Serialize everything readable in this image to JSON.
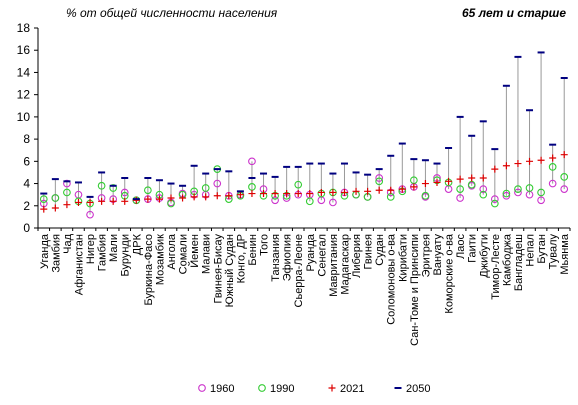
{
  "header": {
    "left": "% от общей численности населения",
    "right": "65 лет и старше"
  },
  "colors": {
    "s1960": "#cc33cc",
    "s1990": "#33cc33",
    "s2021": "#dd0000",
    "s2050": "#000080",
    "range_line": "#999999"
  },
  "chart_data": {
    "type": "scatter",
    "ylim": [
      0,
      18
    ],
    "yticks": [
      "0",
      "2",
      "4",
      "6",
      "8",
      "10",
      "12",
      "14",
      "16",
      "18"
    ],
    "grid": false,
    "legend_position": "bottom",
    "categories": [
      "Уганда",
      "Замбия",
      "Чад",
      "Афганистан",
      "Нигер",
      "Гамбия",
      "Мали",
      "Бурунди",
      "ДРК",
      "Буркина-Фасо",
      "Мозамбик",
      "Ангола",
      "Сомали",
      "Йемен",
      "Малави",
      "Гвинея-Бисау",
      "Южный Судан",
      "Конго, ДР",
      "Бенин",
      "Того",
      "Танзания",
      "Эфиопия",
      "Сьерра-Леоне",
      "Руанда",
      "Сенегал",
      "Мавритания",
      "Мадагаскар",
      "Либерия",
      "Гвинея",
      "Судан",
      "Соломоновы о-ва",
      "Кирибати",
      "Сан-Томе и Принсипи",
      "Эритрея",
      "Вануату",
      "Коморские о-ва",
      "Лаос",
      "Гаити",
      "Джибути",
      "Тимор-Лесте",
      "Камбоджа",
      "Бангладеш",
      "Непал",
      "Бутан",
      "Тувалу",
      "Мьянма"
    ],
    "series": [
      {
        "name": "1960",
        "marker": "circle-open",
        "values": [
          2.2,
          2.7,
          4.0,
          3.0,
          1.2,
          2.7,
          2.6,
          3.2,
          2.5,
          2.6,
          2.7,
          2.3,
          3.1,
          3.0,
          3.0,
          4.0,
          2.9,
          3.0,
          6.0,
          3.5,
          2.5,
          2.7,
          3.0,
          3.0,
          2.5,
          2.3,
          3.2,
          3.0,
          2.8,
          4.5,
          3.2,
          3.5,
          3.7,
          2.8,
          4.5,
          3.5,
          2.7,
          3.8,
          3.5,
          2.6,
          2.9,
          3.2,
          3.0,
          2.5,
          4.0,
          3.5
        ]
      },
      {
        "name": "1990",
        "marker": "circle-open",
        "values": [
          2.6,
          2.7,
          3.2,
          2.4,
          2.2,
          3.8,
          3.6,
          2.9,
          2.5,
          3.4,
          3.0,
          2.2,
          3.0,
          3.3,
          3.6,
          5.3,
          2.6,
          2.9,
          3.7,
          2.9,
          2.9,
          2.9,
          3.9,
          2.4,
          3.1,
          3.2,
          2.9,
          3.0,
          2.8,
          4.2,
          2.8,
          3.3,
          4.3,
          2.9,
          4.3,
          4.1,
          3.5,
          3.9,
          3.0,
          2.2,
          3.1,
          3.5,
          3.6,
          3.2,
          5.5,
          4.6
        ]
      },
      {
        "name": "2021",
        "marker": "plus",
        "values": [
          1.7,
          1.8,
          2.1,
          2.3,
          2.3,
          2.4,
          2.4,
          2.4,
          2.5,
          2.6,
          2.6,
          2.7,
          2.7,
          2.8,
          2.8,
          2.9,
          2.9,
          3.0,
          3.1,
          3.1,
          3.1,
          3.1,
          3.1,
          3.1,
          3.2,
          3.2,
          3.2,
          3.3,
          3.3,
          3.4,
          3.4,
          3.5,
          3.7,
          4.0,
          4.1,
          4.2,
          4.4,
          4.5,
          4.5,
          5.3,
          5.6,
          5.8,
          6.0,
          6.1,
          6.3,
          6.6
        ]
      },
      {
        "name": "2050",
        "marker": "dash",
        "values": [
          3.1,
          4.4,
          4.2,
          4.1,
          2.8,
          5.0,
          3.8,
          4.5,
          2.6,
          4.5,
          4.3,
          4.0,
          3.8,
          5.6,
          4.9,
          5.3,
          5.1,
          3.3,
          4.5,
          4.9,
          4.6,
          5.5,
          5.5,
          5.8,
          5.8,
          4.9,
          5.8,
          5.0,
          4.8,
          5.3,
          6.5,
          7.6,
          6.2,
          6.1,
          5.8,
          7.2,
          10.0,
          8.3,
          9.6,
          7.1,
          12.8,
          15.4,
          10.6,
          15.8,
          7.5,
          13.5
        ]
      }
    ]
  }
}
